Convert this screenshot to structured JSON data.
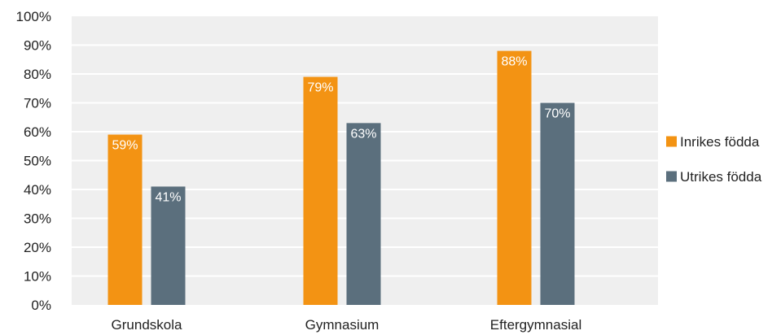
{
  "chart_data": {
    "type": "bar",
    "categories": [
      "Grundskola",
      "Gymnasium",
      "Eftergymnasial"
    ],
    "series": [
      {
        "name": "Inrikes födda",
        "values": [
          59,
          79,
          88
        ],
        "labels": [
          "59%",
          "79%",
          "88%"
        ],
        "color": "#F39313"
      },
      {
        "name": "Utrikes födda",
        "values": [
          41,
          63,
          70
        ],
        "labels": [
          "41%",
          "63%",
          "70%"
        ],
        "color": "#5B6F7D"
      }
    ],
    "ylim": [
      0,
      100
    ],
    "yticks": [
      0,
      10,
      20,
      30,
      40,
      50,
      60,
      70,
      80,
      90,
      100
    ],
    "ytick_labels": [
      "0%",
      "10%",
      "20%",
      "30%",
      "40%",
      "50%",
      "60%",
      "70%",
      "80%",
      "90%",
      "100%"
    ],
    "title": "",
    "xlabel": "",
    "ylabel": "",
    "grid": true,
    "legend_position": "right",
    "colors": {
      "plot_background": "#EFEFEF",
      "gridline": "#FFFFFF"
    }
  }
}
